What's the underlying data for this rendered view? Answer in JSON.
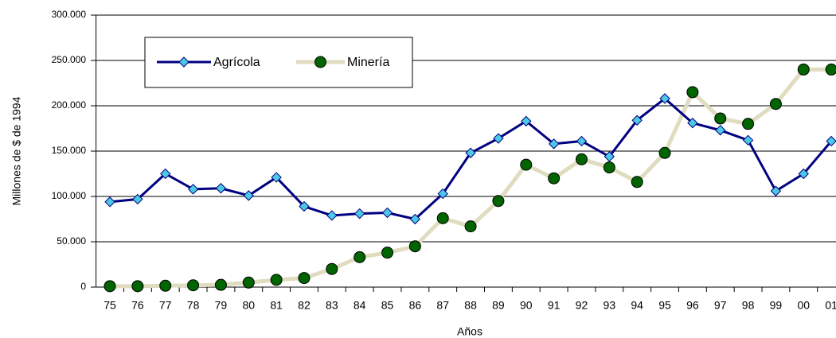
{
  "chart_data": {
    "type": "line",
    "x_label": "Años",
    "y_label": "Millones de $ de 1994",
    "categories": [
      "75",
      "76",
      "77",
      "78",
      "79",
      "80",
      "81",
      "82",
      "83",
      "84",
      "85",
      "86",
      "87",
      "88",
      "89",
      "90",
      "91",
      "92",
      "93",
      "94",
      "95",
      "96",
      "97",
      "98",
      "99",
      "00",
      "01"
    ],
    "series": [
      {
        "name": "Agrícola",
        "color": "#000080",
        "marker_color": "#4cc8e6",
        "values": [
          94000,
          97000,
          125000,
          108000,
          109000,
          101000,
          121000,
          89000,
          79000,
          81000,
          82000,
          75000,
          103000,
          148000,
          164000,
          183000,
          158000,
          161000,
          144000,
          184000,
          208000,
          181000,
          173000,
          162000,
          106000,
          125000,
          161000
        ]
      },
      {
        "name": "Minería",
        "color": "#e0dcc0",
        "marker_color": "#006400",
        "values": [
          1000,
          1000,
          1500,
          2000,
          2500,
          5000,
          8000,
          10000,
          20000,
          33000,
          38000,
          45000,
          76000,
          67000,
          95000,
          135000,
          120000,
          141000,
          132000,
          116000,
          148000,
          215000,
          186000,
          180000,
          202000,
          240000,
          240000
        ]
      }
    ],
    "ylim": [
      0,
      300000
    ],
    "yticks": [
      0,
      {
        "value": 50000,
        "label": "50.000"
      },
      {
        "value": 100000,
        "label": "100.000"
      },
      {
        "value": 150000,
        "label": "150.000"
      },
      {
        "value": 200000,
        "label": "200.000"
      },
      {
        "value": 250000,
        "label": "250.000"
      },
      {
        "value": 300000,
        "label": "300.000"
      }
    ],
    "grid": true
  }
}
